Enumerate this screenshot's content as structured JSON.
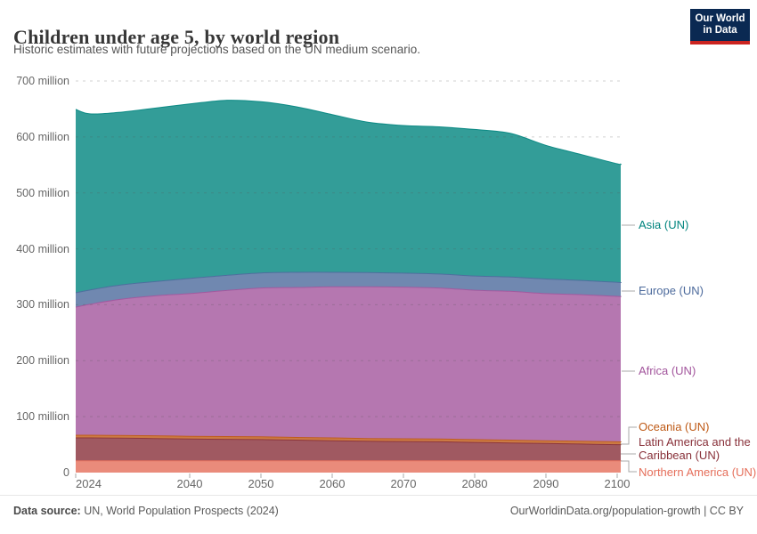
{
  "header": {
    "title": "Children under age 5, by world region",
    "subtitle": "Historic estimates with future projections based on the UN medium scenario.",
    "logo_line1": "Our World",
    "logo_line2": "in Data",
    "logo_bg": "#0A2952",
    "logo_accent": "#CB2420"
  },
  "chart_data": {
    "type": "area",
    "stacked": true,
    "unit": "million",
    "title": "Children under age 5, by world region",
    "xlabel": "",
    "ylabel": "",
    "ylim": [
      0,
      700
    ],
    "grid": "horizontal-dashed",
    "legend_position": "right",
    "x": [
      2024,
      2026,
      2030,
      2035,
      2040,
      2045,
      2050,
      2055,
      2060,
      2065,
      2070,
      2075,
      2080,
      2085,
      2090,
      2095,
      2100
    ],
    "series": [
      {
        "name": "Northern America (UN)",
        "color": "#E56E5A",
        "values": [
          21,
          21,
          21,
          21,
          21,
          21,
          21,
          21,
          21,
          21,
          21,
          21,
          21,
          21,
          21,
          21,
          21
        ]
      },
      {
        "name": "Latin America and the Caribbean (UN)",
        "color": "#883039",
        "values": [
          41,
          41,
          40.5,
          40,
          39,
          38.5,
          38,
          37,
          36,
          35,
          34.5,
          34,
          33,
          32,
          31,
          30,
          29
        ]
      },
      {
        "name": "Oceania (UN)",
        "color": "#BE5915",
        "values": [
          4.8,
          4.8,
          4.8,
          4.8,
          4.9,
          4.9,
          4.9,
          4.9,
          5,
          5,
          5,
          5,
          5,
          5,
          5,
          5,
          5
        ]
      },
      {
        "name": "Africa (UN)",
        "color": "#A2559C",
        "values": [
          229,
          234,
          243,
          250,
          255,
          261,
          266,
          268,
          270,
          271,
          271,
          270,
          267,
          266,
          263,
          262,
          260
        ]
      },
      {
        "name": "Europe (UN)",
        "color": "#4C6A9C",
        "values": [
          25.5,
          25.5,
          25.5,
          25.5,
          27,
          27,
          27,
          27,
          26,
          25.5,
          25,
          25,
          25.5,
          25.5,
          26,
          25.5,
          25
        ]
      },
      {
        "name": "Asia (UN)",
        "color": "#00847E",
        "values": [
          328,
          315,
          309,
          310,
          312,
          313,
          306,
          296,
          282,
          269,
          264,
          263,
          262,
          257,
          239,
          225,
          212
        ]
      }
    ],
    "fill_opacity": 0.8
  },
  "yaxis": {
    "labels": [
      "700 million",
      "600 million",
      "500 million",
      "400 million",
      "300 million",
      "200 million",
      "100 million",
      "0"
    ]
  },
  "xaxis": {
    "labels": [
      "2024",
      "2040",
      "2050",
      "2060",
      "2070",
      "2080",
      "2090",
      "2100"
    ],
    "tick_years": [
      2024,
      2040,
      2050,
      2060,
      2070,
      2080,
      2090,
      2100
    ]
  },
  "footer": {
    "source_label": "Data source:",
    "source": "UN, World Population Prospects (2024)",
    "credit": "OurWorldinData.org/population-growth | CC BY"
  }
}
